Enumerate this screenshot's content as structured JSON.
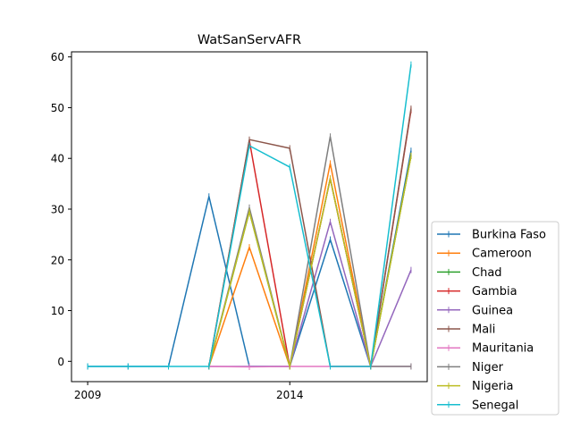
{
  "chart_data": {
    "type": "line",
    "title": "WatSanServAFR",
    "xlabel": "",
    "ylabel": "",
    "x": [
      2009,
      2010,
      2011,
      2012,
      2013,
      2014,
      2015,
      2016,
      2017
    ],
    "x_ticks": [
      2009,
      2014
    ],
    "y_ticks": [
      0,
      10,
      20,
      30,
      40,
      50,
      60
    ],
    "xlim": [
      2008.6,
      2017.4
    ],
    "ylim": [
      -4,
      61
    ],
    "grid": false,
    "legend_position": "lower-right-outside",
    "series": [
      {
        "name": "Burkina Faso",
        "color": "#1f77b4",
        "values": [
          -1,
          -1,
          -1,
          32.5,
          -1,
          -1,
          24,
          -1,
          41.5
        ]
      },
      {
        "name": "Cameroon",
        "color": "#ff7f0e",
        "values": [
          null,
          null,
          null,
          -1,
          22.5,
          -1,
          39,
          -1,
          40.5
        ]
      },
      {
        "name": "Chad",
        "color": "#2ca02c",
        "values": [
          null,
          null,
          null,
          -1,
          29.5,
          -1,
          36,
          -1,
          40.5
        ]
      },
      {
        "name": "Gambia",
        "color": "#d62728",
        "values": [
          null,
          null,
          null,
          -1,
          43.5,
          -1,
          36,
          -1,
          49.5
        ]
      },
      {
        "name": "Guinea",
        "color": "#9467bd",
        "values": [
          null,
          null,
          null,
          -1,
          -1,
          -1,
          27.5,
          -1,
          18
        ]
      },
      {
        "name": "Mali",
        "color": "#8c564b",
        "values": [
          null,
          null,
          null,
          -1,
          43.7,
          42,
          -1,
          -1,
          49.8
        ]
      },
      {
        "name": "Mauritania",
        "color": "#e377c2",
        "values": [
          null,
          null,
          null,
          -1,
          -1.1,
          -1,
          -1,
          -1,
          -1
        ]
      },
      {
        "name": "Niger",
        "color": "#7f7f7f",
        "values": [
          null,
          null,
          null,
          -1,
          30.3,
          -1,
          44.3,
          -1,
          -1
        ]
      },
      {
        "name": "Nigeria",
        "color": "#bcbd22",
        "values": [
          null,
          null,
          null,
          -1,
          29.5,
          -1,
          36,
          -1,
          40.5
        ]
      },
      {
        "name": "Senegal",
        "color": "#17becf",
        "values": [
          -1,
          -1,
          -1,
          -1,
          42.5,
          38.3,
          -1,
          -1,
          58.5
        ]
      }
    ]
  }
}
